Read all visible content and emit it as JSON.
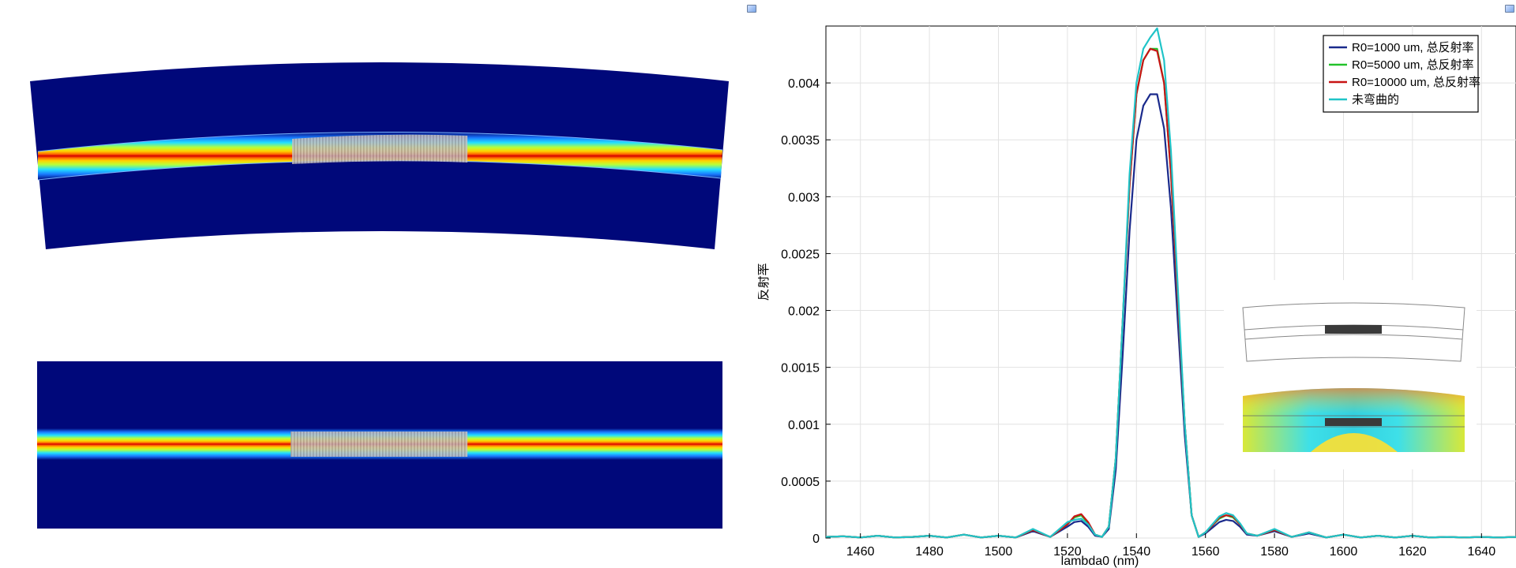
{
  "left": {
    "figure": "mode-field plots of curved and straight waveguide with grating",
    "colors": {
      "background": "#00087a",
      "core": "#d40000",
      "grating": "#bdbdbd"
    }
  },
  "chart_data": {
    "type": "line",
    "title": "",
    "xlabel": "lambda0 (nm)",
    "ylabel": "反射率",
    "xlim": [
      1450,
      1650
    ],
    "ylim": [
      0,
      0.0045
    ],
    "x_ticks": [
      "1460",
      "1480",
      "1500",
      "1520",
      "1540",
      "1560",
      "1580",
      "1600",
      "1620",
      "1640"
    ],
    "y_ticks": [
      "0",
      "0.0005",
      "0.001",
      "0.0015",
      "0.002",
      "0.0025",
      "0.003",
      "0.0035",
      "0.004"
    ],
    "grid": true,
    "legend_position": "top-right",
    "x": [
      1450,
      1455,
      1460,
      1465,
      1470,
      1475,
      1480,
      1485,
      1490,
      1495,
      1500,
      1505,
      1510,
      1515,
      1520,
      1522,
      1524,
      1526,
      1528,
      1530,
      1532,
      1534,
      1536,
      1538,
      1540,
      1542,
      1544,
      1546,
      1548,
      1550,
      1552,
      1554,
      1556,
      1558,
      1560,
      1562,
      1564,
      1566,
      1568,
      1570,
      1572,
      1575,
      1580,
      1585,
      1590,
      1595,
      1600,
      1605,
      1610,
      1615,
      1620,
      1625,
      1630,
      1635,
      1640,
      1645,
      1650
    ],
    "series": [
      {
        "name": "R0=1000 um, 总反射率",
        "color": "#1a2a8c",
        "values": [
          1e-05,
          1.5e-05,
          5e-06,
          2e-05,
          5e-06,
          1e-05,
          2e-05,
          5e-06,
          3e-05,
          5e-06,
          2e-05,
          5e-06,
          6e-05,
          1e-05,
          0.0001,
          0.00014,
          0.00015,
          0.0001,
          2e-05,
          1e-05,
          8e-05,
          0.0006,
          0.0016,
          0.0027,
          0.0035,
          0.0038,
          0.0039,
          0.0039,
          0.0036,
          0.0029,
          0.0019,
          0.0009,
          0.0002,
          1e-05,
          4e-05,
          9e-05,
          0.00014,
          0.00016,
          0.00015,
          0.0001,
          3e-05,
          2e-05,
          6e-05,
          1e-05,
          4e-05,
          5e-06,
          3e-05,
          5e-06,
          2e-05,
          5e-06,
          2e-05,
          5e-06,
          1e-05,
          5e-06,
          1e-05,
          5e-06,
          1e-05
        ]
      },
      {
        "name": "R0=5000 um, 总反射率",
        "color": "#22c22a",
        "values": [
          1e-05,
          1.5e-05,
          5e-06,
          2e-05,
          5e-06,
          1e-05,
          2e-05,
          5e-06,
          3e-05,
          5e-06,
          2e-05,
          5e-06,
          7e-05,
          1e-05,
          0.00012,
          0.00018,
          0.0002,
          0.00013,
          3e-05,
          1e-05,
          0.0001,
          0.0007,
          0.0019,
          0.0031,
          0.0039,
          0.0042,
          0.0043,
          0.0043,
          0.004,
          0.0032,
          0.0021,
          0.001,
          0.0002,
          1e-05,
          5e-05,
          0.00011,
          0.00017,
          0.0002,
          0.00018,
          0.00012,
          4e-05,
          2e-05,
          7e-05,
          1e-05,
          5e-05,
          5e-06,
          3e-05,
          5e-06,
          2e-05,
          5e-06,
          2e-05,
          5e-06,
          1e-05,
          5e-06,
          1e-05,
          5e-06,
          1e-05
        ]
      },
      {
        "name": "R0=10000 um, 总反射率",
        "color": "#c81414",
        "values": [
          1e-05,
          1.5e-05,
          5e-06,
          2e-05,
          5e-06,
          1e-05,
          2e-05,
          5e-06,
          3e-05,
          5e-06,
          2e-05,
          5e-06,
          7e-05,
          1e-05,
          0.00012,
          0.00019,
          0.00021,
          0.00014,
          3e-05,
          1e-05,
          0.0001,
          0.0007,
          0.0019,
          0.0031,
          0.0039,
          0.0042,
          0.0043,
          0.00428,
          0.004,
          0.0032,
          0.0021,
          0.001,
          0.0002,
          1e-05,
          5e-05,
          0.00011,
          0.00018,
          0.0002,
          0.00019,
          0.00012,
          4e-05,
          2e-05,
          7e-05,
          1e-05,
          5e-05,
          5e-06,
          3e-05,
          5e-06,
          2e-05,
          5e-06,
          2e-05,
          5e-06,
          1e-05,
          5e-06,
          1e-05,
          5e-06,
          1e-05
        ]
      },
      {
        "name": "未弯曲的",
        "color": "#20c4c8",
        "values": [
          1e-05,
          1.5e-05,
          5e-06,
          2e-05,
          5e-06,
          1e-05,
          2e-05,
          5e-06,
          3e-05,
          5e-06,
          2e-05,
          5e-06,
          8e-05,
          1e-05,
          0.00014,
          0.00016,
          0.00017,
          0.00012,
          3e-05,
          1e-05,
          0.0001,
          0.0007,
          0.0019,
          0.0032,
          0.004,
          0.0043,
          0.0044,
          0.00448,
          0.0042,
          0.0034,
          0.0022,
          0.001,
          0.0002,
          1e-05,
          5e-05,
          0.00012,
          0.00019,
          0.00022,
          0.0002,
          0.00013,
          4e-05,
          2e-05,
          8e-05,
          1e-05,
          5e-05,
          5e-06,
          3e-05,
          5e-06,
          2e-05,
          5e-06,
          2e-05,
          5e-06,
          1e-05,
          5e-06,
          1e-05,
          5e-06,
          1e-05
        ]
      }
    ]
  }
}
